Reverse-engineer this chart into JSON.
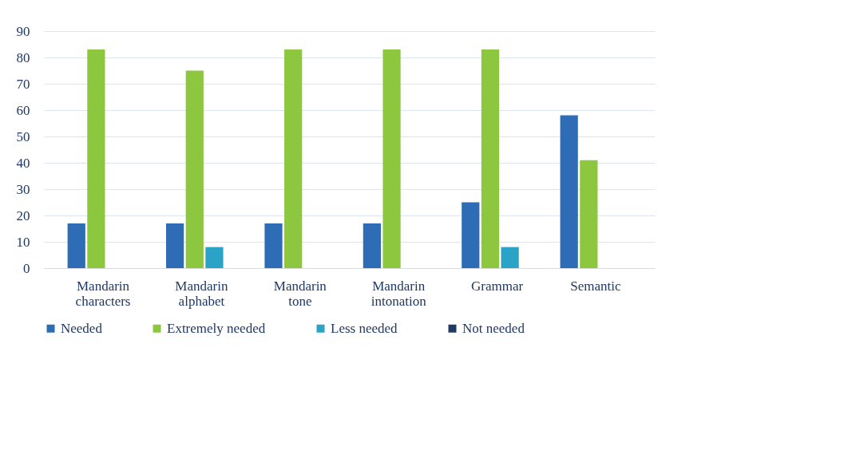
{
  "chart_data": {
    "type": "bar",
    "categories": [
      "Mandarin characters",
      "Mandarin alphabet",
      "Mandarin tone",
      "Mandarin intonation",
      "Grammar",
      "Semantic"
    ],
    "series": [
      {
        "name": "Needed",
        "color": "#2e6db5",
        "values": [
          17,
          17,
          17,
          17,
          25,
          58
        ]
      },
      {
        "name": "Extremely needed",
        "color": "#8dc63f",
        "values": [
          83,
          75,
          83,
          83,
          83,
          41
        ]
      },
      {
        "name": "Less needed",
        "color": "#2aa3c6",
        "values": [
          0,
          8,
          0,
          0,
          8,
          0
        ]
      },
      {
        "name": "Not needed",
        "color": "#1f3b63",
        "values": [
          0,
          0,
          0,
          0,
          0,
          0
        ]
      }
    ],
    "ylim": [
      0,
      90
    ],
    "yticks": [
      0,
      10,
      20,
      30,
      40,
      50,
      60,
      70,
      80,
      90
    ],
    "grid": "y",
    "legend": "bottom"
  }
}
